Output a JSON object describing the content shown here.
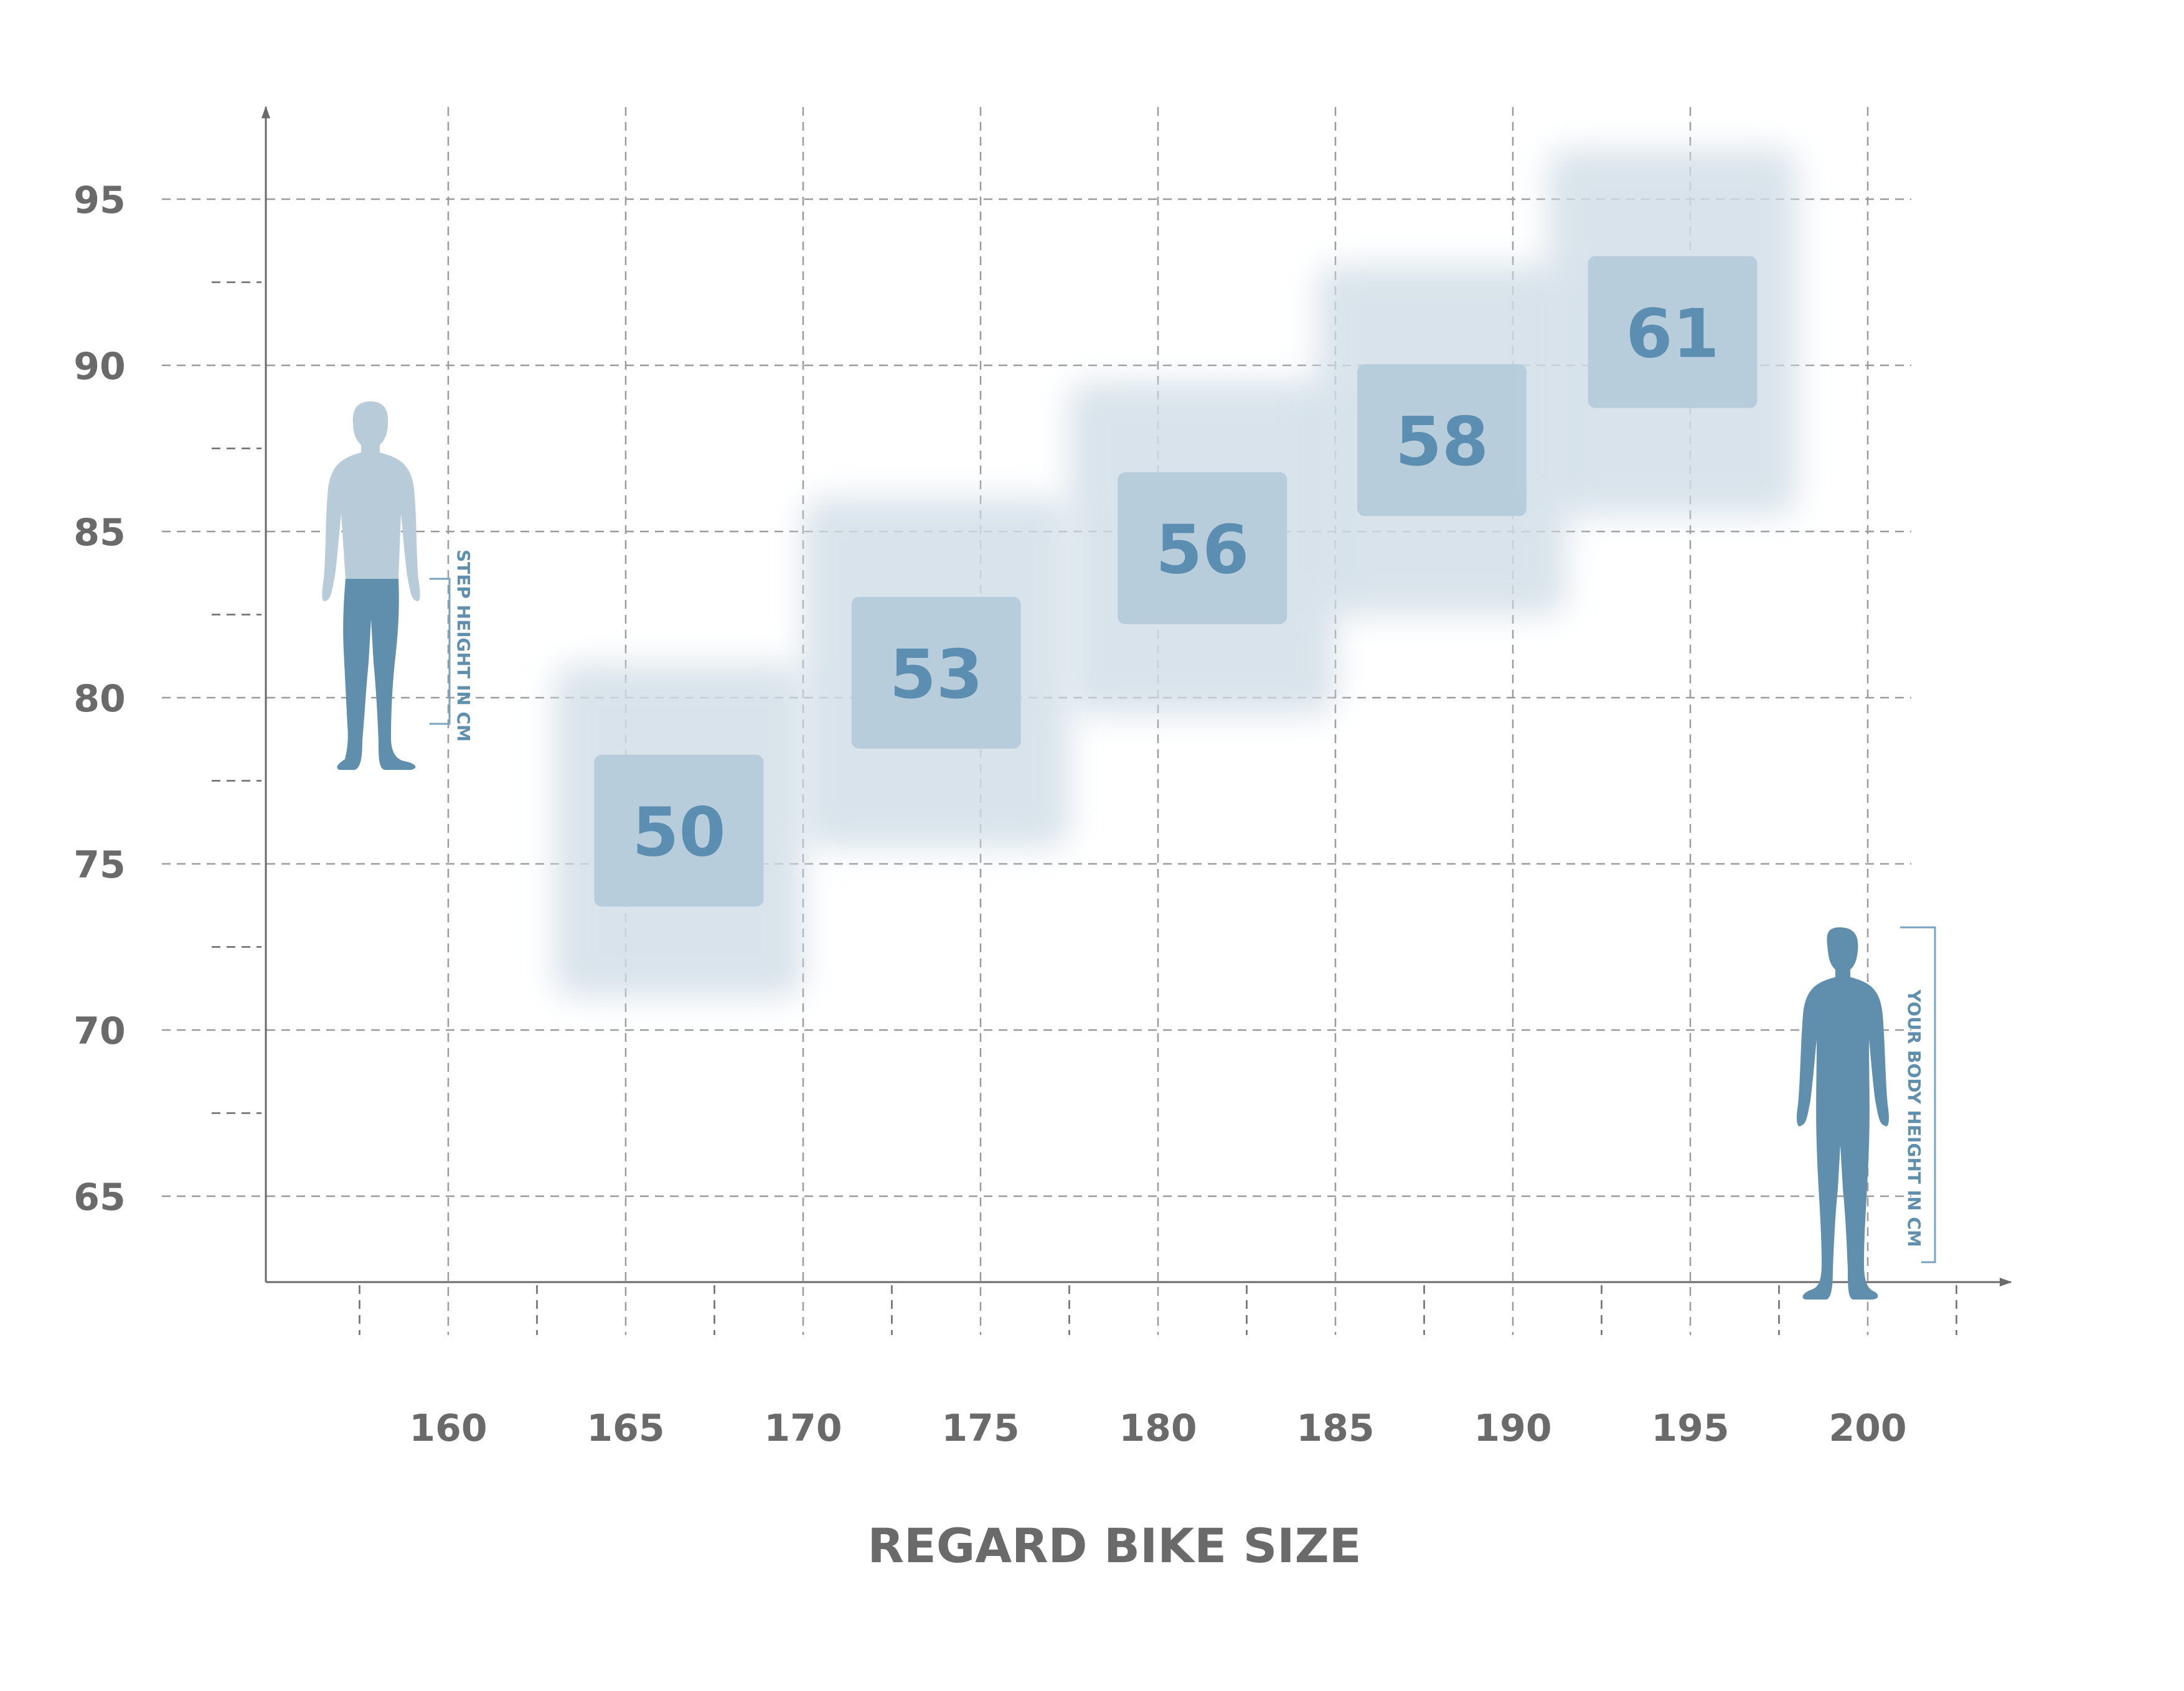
{
  "chart_data": {
    "type": "scatter",
    "title": "",
    "xlabel": "REGARD BIKE SIZE",
    "ylabel": "",
    "xlim": [
      155,
      202
    ],
    "ylim": [
      62.5,
      97
    ],
    "x_ticks": [
      "160",
      "165",
      "170",
      "175",
      "180",
      "185",
      "190",
      "195",
      "200"
    ],
    "y_ticks": [
      "95",
      "90",
      "85",
      "80",
      "75",
      "70",
      "65"
    ],
    "grid": true,
    "sizes": [
      {
        "label": "50",
        "x_range": [
          163,
          170
        ],
        "y_range": [
          71,
          81
        ]
      },
      {
        "label": "53",
        "x_range": [
          170,
          177.5
        ],
        "y_range": [
          75.5,
          86
        ]
      },
      {
        "label": "56",
        "x_range": [
          177.5,
          185
        ],
        "y_range": [
          79.5,
          89.5
        ]
      },
      {
        "label": "58",
        "x_range": [
          184.5,
          191.5
        ],
        "y_range": [
          82.5,
          93
        ]
      },
      {
        "label": "61",
        "x_range": [
          191,
          198
        ],
        "y_range": [
          85.5,
          96.5
        ]
      }
    ],
    "step_height_label": "STEP HEIGHT IN CM",
    "body_height_label": "YOUR BODY HEIGHT IN CM"
  },
  "colors": {
    "box_glow": "#cfdde7",
    "box_core": "#b8cddc",
    "size_text": "#5b8eb0",
    "silhouette_light": "#b7cbd9",
    "silhouette_dark": "#5f8fad",
    "axis": "#6a6a6a",
    "grid": "#9a9a9a"
  }
}
